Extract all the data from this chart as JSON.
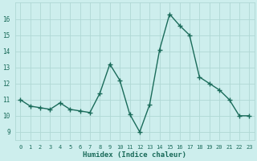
{
  "x": [
    0,
    1,
    2,
    3,
    4,
    5,
    6,
    7,
    8,
    9,
    10,
    11,
    12,
    13,
    14,
    15,
    16,
    17,
    18,
    19,
    20,
    21,
    22,
    23
  ],
  "y": [
    11.0,
    10.6,
    10.5,
    10.4,
    10.8,
    10.4,
    10.3,
    10.2,
    11.4,
    13.2,
    12.2,
    10.1,
    9.0,
    10.7,
    14.1,
    16.3,
    15.6,
    15.0,
    12.4,
    12.0,
    11.6,
    11.0,
    10.0,
    10.0
  ],
  "xlabel": "Humidex (Indice chaleur)",
  "line_color": "#1a6b5a",
  "bg_color": "#cdeeed",
  "grid_color": "#b0d8d5",
  "text_color": "#1a6b5a",
  "ylim": [
    8.5,
    17.0
  ],
  "xlim": [
    -0.5,
    23.5
  ],
  "yticks": [
    9,
    10,
    11,
    12,
    13,
    14,
    15,
    16
  ],
  "xticks": [
    0,
    1,
    2,
    3,
    4,
    5,
    6,
    7,
    8,
    9,
    10,
    11,
    12,
    13,
    14,
    15,
    16,
    17,
    18,
    19,
    20,
    21,
    22,
    23
  ],
  "marker": "+",
  "marker_size": 4,
  "marker_edge_width": 1.0,
  "line_width": 1.0
}
